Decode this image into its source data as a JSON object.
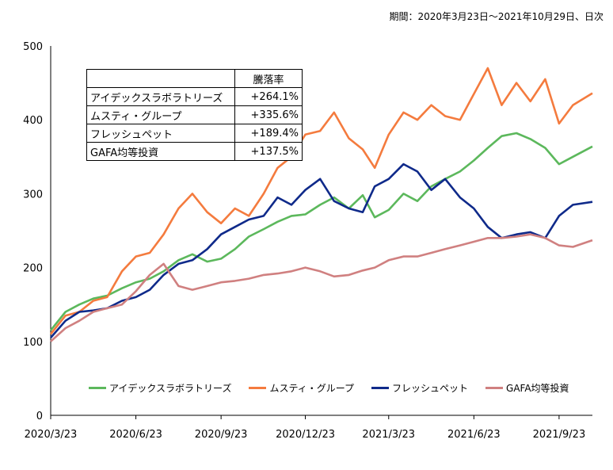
{
  "note": "期間：2020年3月23日～2021年10月29日、日次",
  "table": {
    "header": "騰落率",
    "rows": [
      {
        "name": "アイデックスラボラトリーズ",
        "value": "+264.1%"
      },
      {
        "name": "ムスティ・グループ",
        "value": "+335.6%"
      },
      {
        "name": "フレッシュペット",
        "value": "+189.4%"
      },
      {
        "name": "GAFA均等投資",
        "value": "+137.5%"
      }
    ]
  },
  "chart_data": {
    "type": "line",
    "x_tick_labels": [
      "2020/3/23",
      "2020/6/23",
      "2020/9/23",
      "2020/12/23",
      "2021/3/23",
      "2021/6/23",
      "2021/9/23"
    ],
    "ylim": [
      0,
      500
    ],
    "y_ticks": [
      0,
      100,
      200,
      300,
      400,
      500
    ],
    "x": [
      "2020/3/23",
      "2020/4/8",
      "2020/4/23",
      "2020/5/8",
      "2020/5/23",
      "2020/6/8",
      "2020/6/23",
      "2020/7/8",
      "2020/7/23",
      "2020/8/8",
      "2020/8/23",
      "2020/9/8",
      "2020/9/23",
      "2020/10/8",
      "2020/10/23",
      "2020/11/8",
      "2020/11/23",
      "2020/12/8",
      "2020/12/23",
      "2021/1/8",
      "2021/1/23",
      "2021/2/8",
      "2021/2/23",
      "2021/3/8",
      "2021/3/23",
      "2021/4/8",
      "2021/4/23",
      "2021/5/8",
      "2021/5/23",
      "2021/6/8",
      "2021/6/23",
      "2021/7/8",
      "2021/7/23",
      "2021/8/8",
      "2021/8/23",
      "2021/9/8",
      "2021/9/23",
      "2021/10/8",
      "2021/10/29"
    ],
    "series": [
      {
        "name": "アイデックスラボラトリーズ",
        "color": "#5cb85c",
        "values": [
          115,
          140,
          150,
          158,
          162,
          172,
          180,
          185,
          195,
          210,
          218,
          208,
          212,
          225,
          242,
          252,
          262,
          270,
          272,
          285,
          295,
          280,
          298,
          268,
          278,
          300,
          290,
          310,
          320,
          330,
          345,
          362,
          378,
          382,
          374,
          362,
          340,
          350,
          364
        ]
      },
      {
        "name": "ムスティ・グループ",
        "color": "#f47b3e",
        "values": [
          110,
          135,
          140,
          155,
          160,
          195,
          215,
          220,
          245,
          280,
          300,
          275,
          260,
          280,
          270,
          300,
          335,
          350,
          380,
          385,
          410,
          375,
          360,
          335,
          380,
          410,
          400,
          420,
          405,
          400,
          435,
          470,
          420,
          450,
          425,
          455,
          395,
          420,
          436
        ]
      },
      {
        "name": "フレッシュペット",
        "color": "#0f2a8a",
        "values": [
          105,
          128,
          140,
          142,
          145,
          155,
          160,
          170,
          190,
          205,
          210,
          225,
          245,
          255,
          265,
          270,
          295,
          285,
          305,
          320,
          290,
          280,
          275,
          310,
          320,
          340,
          330,
          305,
          320,
          295,
          280,
          255,
          240,
          245,
          248,
          240,
          270,
          285,
          289
        ]
      },
      {
        "name": "GAFA均等投資",
        "color": "#d08080",
        "values": [
          100,
          118,
          128,
          140,
          145,
          150,
          168,
          190,
          205,
          175,
          170,
          175,
          180,
          182,
          185,
          190,
          192,
          195,
          200,
          195,
          188,
          190,
          196,
          200,
          210,
          215,
          215,
          220,
          225,
          230,
          235,
          240,
          240,
          242,
          245,
          240,
          230,
          228,
          237
        ]
      }
    ]
  }
}
